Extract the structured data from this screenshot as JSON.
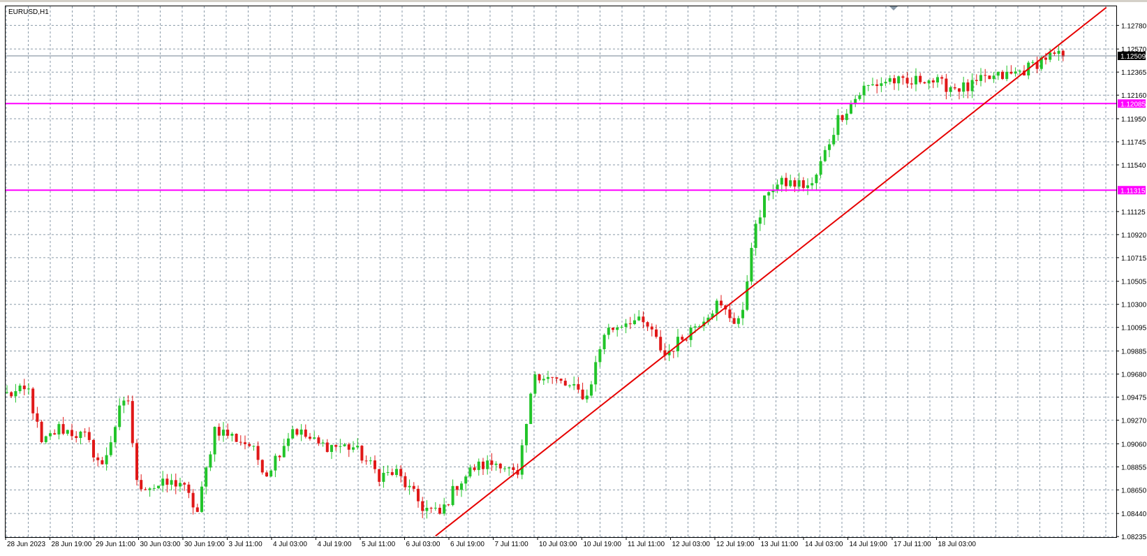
{
  "window": {
    "title": "EURUSD,H1"
  },
  "colors": {
    "background": "#ffffff",
    "grid": "#8a9aa8",
    "bull": "#22c42a",
    "bear": "#e01818",
    "trendline": "#e60000",
    "level": "#ff00ff",
    "bid_line": "#708090",
    "text": "#000000"
  },
  "chart_data": {
    "type": "candlestick",
    "symbol": "EURUSD",
    "timeframe": "H1",
    "title": "EURUSD,H1",
    "x_tick_labels": [
      "28 Jun 2023",
      "28 Jun 19:00",
      "29 Jun 11:00",
      "30 Jun 03:00",
      "30 Jun 19:00",
      "3 Jul 11:00",
      "4 Jul 03:00",
      "4 Jul 19:00",
      "5 Jul 11:00",
      "6 Jul 03:00",
      "6 Jul 19:00",
      "7 Jul 11:00",
      "10 Jul 03:00",
      "10 Jul 19:00",
      "11 Jul 11:00",
      "12 Jul 03:00",
      "12 Jul 19:00",
      "13 Jul 11:00",
      "14 Jul 03:00",
      "14 Jul 19:00",
      "17 Jul 11:00",
      "18 Jul 03:00"
    ],
    "y_tick_labels": [
      "1.12780",
      "1.12570",
      "1.12365",
      "1.12160",
      "1.11950",
      "1.11745",
      "1.11540",
      "1.11125",
      "1.10920",
      "1.10715",
      "1.10505",
      "1.10300",
      "1.10095",
      "1.09885",
      "1.09680",
      "1.09475",
      "1.09270",
      "1.09060",
      "1.08855",
      "1.08650",
      "1.08440",
      "1.08235"
    ],
    "ylim": [
      1.0823,
      1.1295
    ],
    "current_price": "1.12509",
    "horizontal_levels": [
      {
        "label": "1.12085",
        "value": 1.12085
      },
      {
        "label": "1.11315",
        "value": 1.11315
      }
    ],
    "trendline": {
      "from": {
        "bar": 99,
        "price": 1.0824
      },
      "to": {
        "bar": 254,
        "price": 1.1294
      }
    },
    "anchors": [
      [
        0,
        1.095
      ],
      [
        5,
        1.0953
      ],
      [
        8,
        1.0905
      ],
      [
        12,
        1.092
      ],
      [
        18,
        1.0912
      ],
      [
        22,
        1.0885
      ],
      [
        26,
        1.0935
      ],
      [
        28,
        1.0945
      ],
      [
        30,
        1.087
      ],
      [
        34,
        1.0868
      ],
      [
        40,
        1.0872
      ],
      [
        44,
        1.0845
      ],
      [
        48,
        1.092
      ],
      [
        56,
        1.0905
      ],
      [
        60,
        1.088
      ],
      [
        66,
        1.092
      ],
      [
        72,
        1.0905
      ],
      [
        80,
        1.0903
      ],
      [
        86,
        1.0878
      ],
      [
        90,
        1.088
      ],
      [
        96,
        1.085
      ],
      [
        100,
        1.0843
      ],
      [
        104,
        1.087
      ],
      [
        108,
        1.0885
      ],
      [
        114,
        1.089
      ],
      [
        118,
        1.0875
      ],
      [
        122,
        1.097
      ],
      [
        128,
        1.096
      ],
      [
        134,
        1.0948
      ],
      [
        138,
        1.1005
      ],
      [
        144,
        1.1017
      ],
      [
        148,
        1.101
      ],
      [
        152,
        1.0985
      ],
      [
        158,
        1.1008
      ],
      [
        164,
        1.103
      ],
      [
        168,
        1.1016
      ],
      [
        170,
        1.102
      ],
      [
        172,
        1.1085
      ],
      [
        176,
        1.1133
      ],
      [
        180,
        1.1138
      ],
      [
        186,
        1.1135
      ],
      [
        192,
        1.1195
      ],
      [
        198,
        1.1222
      ],
      [
        204,
        1.123
      ],
      [
        208,
        1.1225
      ],
      [
        212,
        1.1232
      ],
      [
        216,
        1.1225
      ],
      [
        222,
        1.1222
      ],
      [
        226,
        1.123
      ],
      [
        232,
        1.1234
      ],
      [
        236,
        1.124
      ],
      [
        240,
        1.125
      ],
      [
        244,
        1.125
      ]
    ]
  }
}
